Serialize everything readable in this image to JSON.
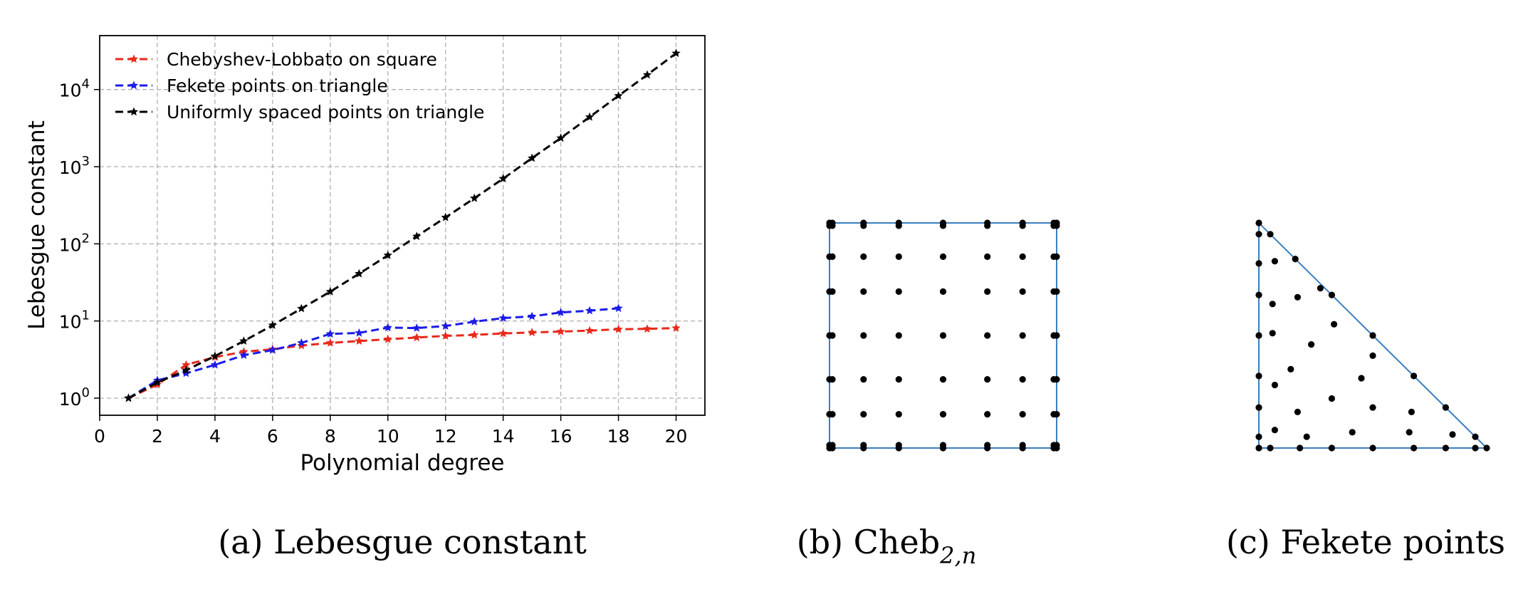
{
  "chart_data": [
    {
      "type": "line",
      "xlabel": "Polynomial degree",
      "ylabel": "Lebesgue constant",
      "yscale": "log",
      "xlim": [
        0,
        21
      ],
      "ylim": [
        0.6,
        50000
      ],
      "xticks": [
        "0",
        "2",
        "4",
        "6",
        "8",
        "10",
        "12",
        "14",
        "16",
        "18",
        "20"
      ],
      "yticks": [
        {
          "value": 1,
          "base": "10",
          "exp": "0"
        },
        {
          "value": 10,
          "base": "10",
          "exp": "1"
        },
        {
          "value": 100,
          "base": "10",
          "exp": "2"
        },
        {
          "value": 1000,
          "base": "10",
          "exp": "3"
        },
        {
          "value": 10000,
          "base": "10",
          "exp": "4"
        }
      ],
      "grid": true,
      "legend_position": "top-left",
      "series": [
        {
          "name": "Chebyshev-Lobbato on square",
          "color": "#e8291c",
          "x": [
            1,
            2,
            3,
            4,
            5,
            6,
            7,
            8,
            9,
            10,
            11,
            12,
            13,
            14,
            15,
            16,
            17,
            18,
            19,
            20
          ],
          "values": [
            1.0,
            1.5,
            2.7,
            3.4,
            4.0,
            4.3,
            4.8,
            5.2,
            5.5,
            5.8,
            6.1,
            6.4,
            6.6,
            6.9,
            7.1,
            7.3,
            7.5,
            7.8,
            7.9,
            8.1
          ]
        },
        {
          "name": "Fekete points on triangle",
          "color": "#1c1ce8",
          "x": [
            1,
            2,
            3,
            4,
            5,
            6,
            7,
            8,
            9,
            10,
            11,
            12,
            13,
            14,
            15,
            16,
            17,
            18
          ],
          "values": [
            1.0,
            1.7,
            2.1,
            2.7,
            3.6,
            4.2,
            5.2,
            6.8,
            7.0,
            8.2,
            8.1,
            8.6,
            9.8,
            10.9,
            11.5,
            12.9,
            13.6,
            14.6
          ]
        },
        {
          "name": "Uniformly spaced points on triangle",
          "color": "#000000",
          "x": [
            1,
            2,
            3,
            4,
            5,
            6,
            7,
            8,
            9,
            10,
            11,
            12,
            13,
            14,
            15,
            16,
            17,
            18,
            19,
            20
          ],
          "values": [
            1.0,
            1.6,
            2.3,
            3.5,
            5.5,
            8.8,
            14.5,
            24,
            41,
            71,
            125,
            220,
            390,
            700,
            1290,
            2350,
            4400,
            8300,
            15500,
            29500
          ]
        }
      ]
    },
    {
      "type": "scatter",
      "domain": "square",
      "grid_nodes": [
        -1,
        -0.975,
        -0.7,
        -0.39,
        0,
        0.39,
        0.7,
        0.975,
        1
      ]
    },
    {
      "type": "scatter",
      "domain": "triangle",
      "points": [
        [
          0,
          0
        ],
        [
          0.05,
          0
        ],
        [
          0.18,
          0
        ],
        [
          0.32,
          0
        ],
        [
          0.5,
          0
        ],
        [
          0.68,
          0
        ],
        [
          0.82,
          0
        ],
        [
          0.95,
          0
        ],
        [
          1,
          0
        ],
        [
          0,
          0.05
        ],
        [
          0,
          0.18
        ],
        [
          0,
          0.32
        ],
        [
          0,
          0.5
        ],
        [
          0,
          0.68
        ],
        [
          0,
          0.82
        ],
        [
          0,
          0.95
        ],
        [
          0,
          1
        ],
        [
          0.05,
          0.95
        ],
        [
          0.16,
          0.84
        ],
        [
          0.32,
          0.68
        ],
        [
          0.5,
          0.5
        ],
        [
          0.68,
          0.32
        ],
        [
          0.82,
          0.18
        ],
        [
          0.95,
          0.05
        ],
        [
          0.07,
          0.08
        ],
        [
          0.21,
          0.05
        ],
        [
          0.41,
          0.07
        ],
        [
          0.66,
          0.07
        ],
        [
          0.85,
          0.06
        ],
        [
          0.07,
          0.28
        ],
        [
          0.17,
          0.16
        ],
        [
          0.32,
          0.22
        ],
        [
          0.5,
          0.18
        ],
        [
          0.67,
          0.16
        ],
        [
          0.06,
          0.51
        ],
        [
          0.14,
          0.35
        ],
        [
          0.23,
          0.46
        ],
        [
          0.45,
          0.31
        ],
        [
          0.5,
          0.41
        ],
        [
          0.06,
          0.64
        ],
        [
          0.17,
          0.67
        ],
        [
          0.27,
          0.71
        ],
        [
          0.33,
          0.55
        ],
        [
          0.07,
          0.83
        ]
      ]
    }
  ],
  "captions": {
    "a": "(a) Lebesgue constant",
    "b_main": "(b) Cheb",
    "b_sub": "2,n",
    "c": "(c) Fekete points"
  }
}
